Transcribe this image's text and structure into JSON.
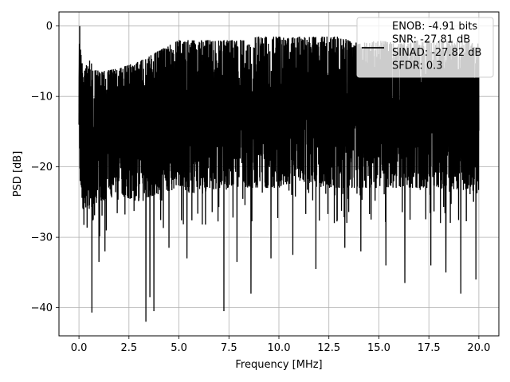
{
  "chart_data": {
    "type": "line",
    "xlabel": "Frequency [MHz]",
    "ylabel": "PSD [dB]",
    "xlim": [
      -1.0,
      21.0
    ],
    "ylim": [
      -44.0,
      2.0
    ],
    "xticks": [
      0.0,
      2.5,
      5.0,
      7.5,
      10.0,
      12.5,
      15.0,
      17.5,
      20.0
    ],
    "xtick_labels": [
      "0.0",
      "2.5",
      "5.0",
      "7.5",
      "10.0",
      "12.5",
      "15.0",
      "17.5",
      "20.0"
    ],
    "yticks": [
      0,
      -10,
      -20,
      -30,
      -40
    ],
    "ytick_labels": [
      "0",
      "−10",
      "−20",
      "−30",
      "−40"
    ],
    "grid": true,
    "legend_position": "top-right",
    "legend_lines": [
      "ENOB: -4.91 bits",
      "SNR: -27.81 dB",
      "SINAD: -27.82 dB",
      "SFDR: 0.3"
    ],
    "series": [
      {
        "color": "#000000",
        "x_start": 0.0,
        "x_end": 20.0,
        "envelope": {
          "x": [
            0.0,
            0.05,
            0.2,
            0.5,
            1.0,
            2.0,
            3.0,
            4.0,
            5.0,
            6.0,
            7.0,
            8.0,
            9.0,
            10.0,
            11.0,
            12.0,
            13.0,
            14.0,
            15.0,
            16.0,
            17.0,
            18.0,
            19.0,
            20.0
          ],
          "upper": [
            -2.5,
            0.0,
            -7.0,
            -4.5,
            -6.5,
            -6.0,
            -5.0,
            -3.5,
            -2.0,
            -2.0,
            -2.0,
            -2.0,
            -1.5,
            -1.5,
            -1.5,
            -1.5,
            -1.5,
            -2.5,
            -2.0,
            -2.5,
            -2.0,
            -2.0,
            -2.0,
            -2.5
          ],
          "typical_low": [
            -14.0,
            -22.0,
            -26.0,
            -26.0,
            -25.0,
            -24.0,
            -25.0,
            -24.0,
            -23.0,
            -24.0,
            -23.0,
            -23.0,
            -23.0,
            -23.0,
            -22.0,
            -23.0,
            -23.0,
            -23.0,
            -23.0,
            -23.0,
            -23.0,
            -23.0,
            -24.0,
            -22.0
          ]
        },
        "dips": [
          {
            "x": 0.65,
            "y": -40.7
          },
          {
            "x": 1.0,
            "y": -33.5
          },
          {
            "x": 1.3,
            "y": -32.0
          },
          {
            "x": 3.35,
            "y": -42.0
          },
          {
            "x": 3.55,
            "y": -38.5
          },
          {
            "x": 3.75,
            "y": -40.5
          },
          {
            "x": 4.5,
            "y": -31.5
          },
          {
            "x": 5.4,
            "y": -33.0
          },
          {
            "x": 7.25,
            "y": -40.5
          },
          {
            "x": 7.9,
            "y": -33.5
          },
          {
            "x": 8.6,
            "y": -38.0
          },
          {
            "x": 9.6,
            "y": -33.0
          },
          {
            "x": 10.7,
            "y": -32.5
          },
          {
            "x": 11.85,
            "y": -34.5
          },
          {
            "x": 13.3,
            "y": -31.5
          },
          {
            "x": 14.1,
            "y": -32.0
          },
          {
            "x": 15.35,
            "y": -34.0
          },
          {
            "x": 16.3,
            "y": -36.5
          },
          {
            "x": 17.6,
            "y": -34.0
          },
          {
            "x": 18.35,
            "y": -35.0
          },
          {
            "x": 19.1,
            "y": -38.0
          },
          {
            "x": 19.85,
            "y": -36.0
          }
        ]
      }
    ]
  }
}
